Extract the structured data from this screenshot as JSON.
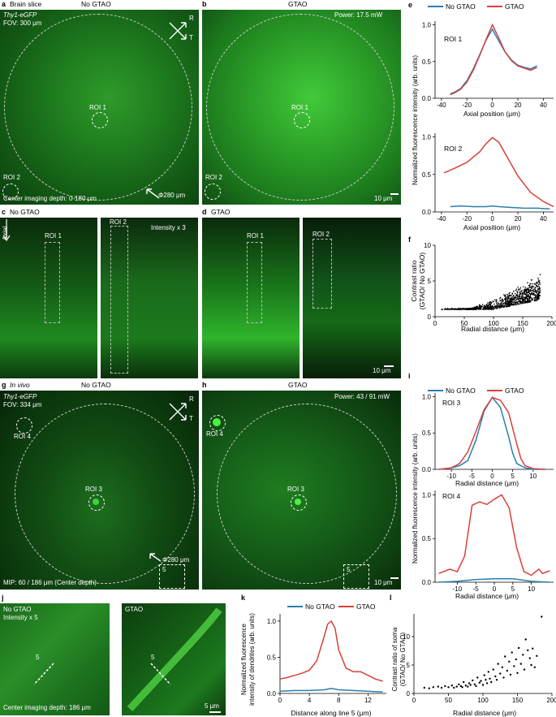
{
  "colors": {
    "no_gtao": "#2a7fb0",
    "gtao": "#d9403a",
    "tissue": "#1f8f24"
  },
  "panels": {
    "a": {
      "letter": "a",
      "title": "Brain slice",
      "header": "No GTAO",
      "line1": "Thy1-eGFP",
      "line2": "FOV: 300 μm",
      "roi1": "ROI 1",
      "roi2": "ROI 2",
      "depth": "Center imaging depth: 0-180 μm",
      "diameter": "Φ280 μm",
      "axis_r": "R",
      "axis_t": "T"
    },
    "b": {
      "letter": "b",
      "header": "GTAO",
      "power": "Power: 17.5 mW",
      "roi1": "ROI 1",
      "roi2": "ROI 2",
      "scale": "10 μm"
    },
    "c": {
      "letter": "c",
      "title": "No GTAO",
      "axial": "Axial",
      "roi1": "ROI 1",
      "roi2": "ROI 2",
      "intensity": "Intensity x 3"
    },
    "d": {
      "letter": "d",
      "title": "GTAO",
      "roi1": "ROI 1",
      "roi2": "ROI 2",
      "scale": "10 μm"
    },
    "g": {
      "letter": "g",
      "title": "In vivo",
      "header": "No GTAO",
      "line1": "Thy1-eGFP",
      "line2": "FOV: 334 μm",
      "roi4": "ROI 4",
      "roi3": "ROI 3",
      "diameter": "Φ280 μm",
      "mip": "MIP: 60 / 186 μm (Center depth)",
      "box5": "5",
      "axis_r": "R",
      "axis_t": "T"
    },
    "h": {
      "letter": "h",
      "header": "GTAO",
      "power": "Power: 43 / 91 mW",
      "roi4": "ROI 4",
      "roi3": "ROI 3",
      "box5": "5",
      "scale": "10 μm"
    },
    "j": {
      "letter": "j",
      "left_title": "No GTAO",
      "left_sub": "Intensity x 5",
      "left_line": "5",
      "left_depth": "Center imaging depth: 186 μm",
      "right_title": "GTAO",
      "right_line": "5",
      "scale": "5 μm"
    }
  },
  "chart_data": [
    {
      "panel": "e",
      "type": "line",
      "roi": "ROI 1",
      "legend": [
        "No GTAO",
        "GTAO"
      ],
      "xlabel": "Axial position (μm)",
      "ylabel": "Normalized fluorescence intensity (arb. units)",
      "xlim": [
        -45,
        48
      ],
      "ylim": [
        0,
        1.05
      ],
      "xticks": [
        -40,
        -20,
        0,
        20,
        40
      ],
      "yticks": [
        0,
        0.5,
        1.0
      ],
      "series": [
        {
          "name": "No GTAO",
          "x": [
            -33,
            -30,
            -25,
            -20,
            -15,
            -10,
            -5,
            0,
            5,
            10,
            15,
            20,
            25,
            30,
            35
          ],
          "y": [
            0.06,
            0.08,
            0.13,
            0.24,
            0.4,
            0.59,
            0.79,
            0.94,
            0.78,
            0.63,
            0.52,
            0.45,
            0.42,
            0.4,
            0.44
          ]
        },
        {
          "name": "GTAO",
          "x": [
            -33,
            -30,
            -25,
            -20,
            -15,
            -10,
            -5,
            0,
            5,
            10,
            15,
            20,
            25,
            30,
            35
          ],
          "y": [
            0.05,
            0.07,
            0.12,
            0.22,
            0.38,
            0.58,
            0.8,
            1.0,
            0.82,
            0.63,
            0.51,
            0.44,
            0.41,
            0.38,
            0.42
          ]
        }
      ]
    },
    {
      "panel": "e",
      "type": "line",
      "roi": "ROI 2",
      "xlabel": "Axial position (μm)",
      "ylabel": "",
      "xlim": [
        -45,
        48
      ],
      "ylim": [
        0,
        1.05
      ],
      "xticks": [
        -40,
        -20,
        0,
        20,
        40
      ],
      "yticks": [
        0,
        0.5,
        1.0
      ],
      "series": [
        {
          "name": "No GTAO",
          "x": [
            -33,
            -25,
            -15,
            -5,
            0,
            5,
            15,
            25,
            35,
            45
          ],
          "y": [
            0.07,
            0.08,
            0.07,
            0.07,
            0.08,
            0.07,
            0.06,
            0.05,
            0.05,
            0.04
          ]
        },
        {
          "name": "GTAO",
          "x": [
            -38,
            -30,
            -20,
            -10,
            -5,
            0,
            5,
            10,
            20,
            30,
            40,
            48
          ],
          "y": [
            0.52,
            0.58,
            0.66,
            0.8,
            0.91,
            0.99,
            0.93,
            0.78,
            0.48,
            0.26,
            0.14,
            0.07
          ]
        }
      ]
    },
    {
      "panel": "f",
      "type": "scatter",
      "xlabel": "Radial distance (μm)",
      "ylabel": "Contrast ratio (GTAO/ No GTAO)",
      "xlim": [
        0,
        200
      ],
      "ylim": [
        0,
        10
      ],
      "xticks": [
        0,
        50,
        100,
        150,
        200
      ],
      "yticks": [
        0,
        5,
        10
      ]
    },
    {
      "panel": "i",
      "type": "line",
      "roi": "ROI 3",
      "legend": [
        "No GTAO",
        "GTAO"
      ],
      "xlabel": "Radial distance (μm)",
      "ylabel": "Normalized fluorescence intensity (arb. units)",
      "xlim": [
        -14,
        15
      ],
      "ylim": [
        0,
        1.05
      ],
      "xticks": [
        -10,
        -5,
        0,
        5,
        10
      ],
      "yticks": [
        0,
        0.5,
        1.0
      ],
      "series": [
        {
          "name": "No GTAO",
          "x": [
            -13,
            -10,
            -8,
            -6,
            -4,
            -2,
            0,
            2,
            4,
            5,
            6,
            8,
            10,
            13
          ],
          "y": [
            0.0,
            0.02,
            0.05,
            0.12,
            0.4,
            0.8,
            0.99,
            0.85,
            0.45,
            0.22,
            0.08,
            0.02,
            0.0,
            0.0
          ]
        },
        {
          "name": "GTAO",
          "x": [
            -13,
            -10,
            -8,
            -6,
            -4,
            -2,
            0,
            2,
            4,
            6,
            7,
            8,
            10,
            13
          ],
          "y": [
            0.0,
            0.02,
            0.08,
            0.24,
            0.52,
            0.82,
            0.99,
            0.95,
            0.78,
            0.35,
            0.15,
            0.05,
            0.01,
            0.0
          ]
        }
      ]
    },
    {
      "panel": "i",
      "type": "line",
      "roi": "ROI 4",
      "xlabel": "Radial distance (μm)",
      "ylabel": "",
      "xlim": [
        -16,
        16
      ],
      "ylim": [
        0,
        1.05
      ],
      "xticks": [
        -10,
        -5,
        0,
        5,
        10
      ],
      "yticks": [
        0,
        0.5,
        1.0
      ],
      "series": [
        {
          "name": "No GTAO",
          "x": [
            -15,
            -10,
            -5,
            0,
            5,
            10,
            15
          ],
          "y": [
            0.0,
            0.01,
            0.03,
            0.04,
            0.04,
            0.01,
            0.0
          ]
        },
        {
          "name": "GTAO",
          "x": [
            -15,
            -12,
            -10,
            -8,
            -6,
            -4,
            -2,
            0,
            2,
            4,
            6,
            8,
            10,
            12,
            13,
            15
          ],
          "y": [
            0.1,
            0.15,
            0.12,
            0.3,
            0.88,
            0.92,
            0.89,
            0.95,
            1.0,
            0.85,
            0.4,
            0.12,
            0.08,
            0.15,
            0.1,
            0.13
          ]
        }
      ]
    },
    {
      "panel": "k",
      "type": "line",
      "legend": [
        "No GTAO",
        "GTAO"
      ],
      "xlabel": "Distance along line 5 (μm)",
      "ylabel": "Normalized fluorescence intensity of dendrites (arb. units)",
      "xlim": [
        0,
        14.5
      ],
      "ylim": [
        0,
        1.1
      ],
      "xticks": [
        0,
        4,
        8,
        12
      ],
      "yticks": [
        0,
        0.5,
        1.0
      ],
      "series": [
        {
          "name": "No GTAO",
          "x": [
            0,
            2,
            4,
            6,
            7,
            8,
            10,
            12,
            14
          ],
          "y": [
            0.03,
            0.04,
            0.04,
            0.05,
            0.07,
            0.05,
            0.04,
            0.03,
            0.02
          ]
        },
        {
          "name": "GTAO",
          "x": [
            0,
            1,
            2,
            3,
            4,
            5,
            6,
            6.5,
            7,
            7.5,
            8,
            9,
            10,
            11,
            12,
            13,
            14
          ],
          "y": [
            0.2,
            0.22,
            0.25,
            0.28,
            0.32,
            0.45,
            0.78,
            0.96,
            1.0,
            0.9,
            0.6,
            0.35,
            0.3,
            0.3,
            0.25,
            0.2,
            0.17
          ]
        }
      ]
    },
    {
      "panel": "l",
      "type": "scatter",
      "xlabel": "Radial distance (μm)",
      "ylabel": "Contrast ratio of soma (GTAO/ No GTAO)",
      "xlim": [
        0,
        200
      ],
      "ylim": [
        0,
        14
      ],
      "xticks": [
        0,
        50,
        100,
        150,
        200
      ],
      "yticks": [
        0,
        5,
        10
      ],
      "points": [
        [
          15,
          1.0
        ],
        [
          22,
          0.9
        ],
        [
          28,
          1.1
        ],
        [
          35,
          1.2
        ],
        [
          40,
          1.0
        ],
        [
          45,
          1.3
        ],
        [
          50,
          1.1
        ],
        [
          55,
          1.4
        ],
        [
          58,
          1.0
        ],
        [
          62,
          1.2
        ],
        [
          65,
          1.6
        ],
        [
          68,
          1.3
        ],
        [
          70,
          1.1
        ],
        [
          72,
          2.0
        ],
        [
          75,
          1.4
        ],
        [
          78,
          1.2
        ],
        [
          80,
          1.8
        ],
        [
          82,
          1.5
        ],
        [
          85,
          2.3
        ],
        [
          88,
          1.6
        ],
        [
          90,
          1.3
        ],
        [
          92,
          2.8
        ],
        [
          95,
          1.9
        ],
        [
          97,
          2.2
        ],
        [
          100,
          1.5
        ],
        [
          102,
          3.2
        ],
        [
          104,
          2.4
        ],
        [
          106,
          1.8
        ],
        [
          108,
          3.8
        ],
        [
          110,
          2.6
        ],
        [
          112,
          2.0
        ],
        [
          115,
          4.2
        ],
        [
          118,
          3.0
        ],
        [
          120,
          2.4
        ],
        [
          122,
          5.2
        ],
        [
          125,
          3.5
        ],
        [
          128,
          4.6
        ],
        [
          130,
          2.8
        ],
        [
          132,
          6.5
        ],
        [
          135,
          4.0
        ],
        [
          138,
          5.6
        ],
        [
          140,
          3.3
        ],
        [
          142,
          7.2
        ],
        [
          145,
          4.8
        ],
        [
          148,
          6.0
        ],
        [
          150,
          3.6
        ],
        [
          152,
          8.0
        ],
        [
          155,
          5.2
        ],
        [
          158,
          6.8
        ],
        [
          160,
          4.2
        ],
        [
          162,
          9.5
        ],
        [
          165,
          7.6
        ],
        [
          168,
          6.2
        ],
        [
          170,
          5.0
        ],
        [
          172,
          7.9
        ],
        [
          175,
          4.6
        ],
        [
          178,
          6.6
        ],
        [
          185,
          13.5
        ]
      ]
    }
  ],
  "chart_text": {
    "e_letter": "e",
    "f_letter": "f",
    "i_letter": "i",
    "k_letter": "k",
    "l_letter": "l",
    "legend_no": "No GTAO",
    "legend_gtao": "GTAO",
    "e_roi1": "ROI 1",
    "e_roi2": "ROI 2",
    "i_roi3": "ROI 3",
    "i_roi4": "ROI 4",
    "e_ylabel": "Normalized fluorescence intensity (arb. units)",
    "e_xlabel": "Axial position (μm)",
    "f_ylabel1": "Contrast ratio",
    "f_ylabel2": "(GTAO/ No GTAO)",
    "f_xlabel": "Radial distance (μm)",
    "i_ylabel": "Normalized fluorescence intensity (arb. units)",
    "i_xlabel": "Radial distance (μm)",
    "k_ylabel1": "Normalized fluorescence",
    "k_ylabel2": "intensity of dendrites (arb. units)",
    "k_xlabel": "Distance along line 5 (μm)",
    "l_ylabel1": "Contrast ratio of soma",
    "l_ylabel2": "(GTAO/ No GTAO)",
    "l_xlabel": "Radial distance (μm)"
  }
}
